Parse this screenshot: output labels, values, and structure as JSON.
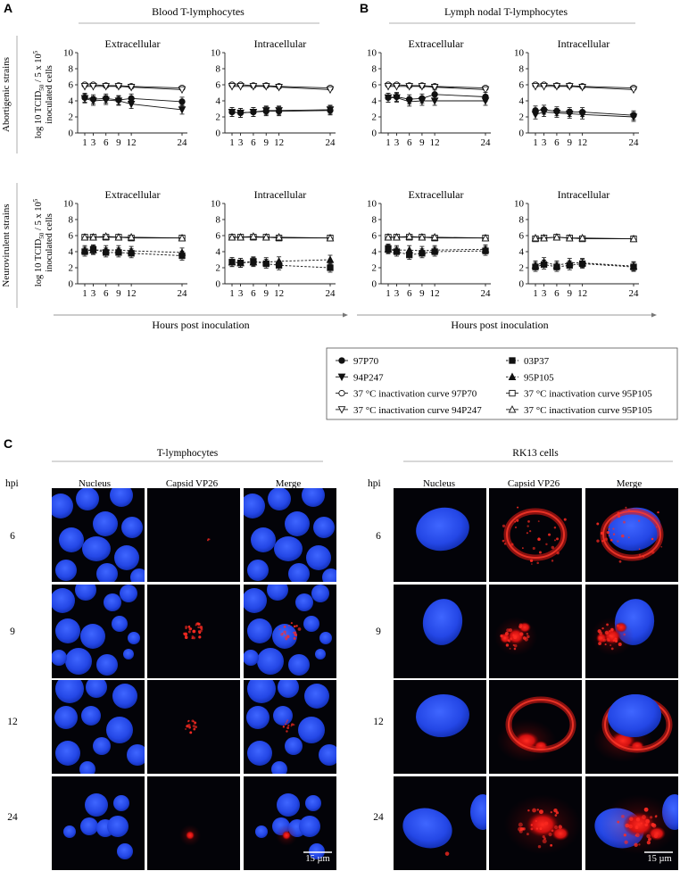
{
  "panels": {
    "A": "A",
    "B": "B",
    "C": "C",
    "A_title": "Blood T-lymphocytes",
    "B_title": "Lymph nodal T-lymphocytes"
  },
  "row_labels": {
    "top": "Abortigenic strains",
    "bottom": "Neurovirulent strains",
    "ylabel_main": "log 10 TCID",
    "ylabel_sub": "50",
    "ylabel_tail": " / 5 x 10",
    "ylabel_sup": "5",
    "ylabel_line2": "inoculated cells"
  },
  "xlabel": "Hours post inoculation",
  "legend": [
    {
      "label": "97P70",
      "marker": "circle-filled",
      "dash": false
    },
    {
      "label": "03P37",
      "marker": "square-filled",
      "dash": true
    },
    {
      "label": "94P247",
      "marker": "tri-down-filled",
      "dash": false
    },
    {
      "label": "95P105",
      "marker": "tri-up-filled",
      "dash": true
    },
    {
      "label": "37 °C inactivation curve 97P70",
      "marker": "circle-open",
      "dash": false
    },
    {
      "label": "37 °C inactivation curve 95P105",
      "marker": "square-open",
      "dash": false
    },
    {
      "label": "37 °C inactivation curve 94P247",
      "marker": "tri-down-open",
      "dash": false
    },
    {
      "label": "37 °C inactivation curve 95P105",
      "marker": "tri-up-open",
      "dash": false
    }
  ],
  "chart_data": [
    {
      "id": "A-ab-extra",
      "type": "line",
      "title": "Extracellular",
      "x": [
        1,
        3,
        6,
        9,
        12,
        24
      ],
      "ylim": [
        0,
        10
      ],
      "yticks": [
        0,
        2,
        4,
        6,
        8,
        10
      ],
      "xticks": [
        1,
        3,
        6,
        9,
        12,
        24
      ],
      "series": [
        {
          "name": "97P70",
          "values": [
            4.4,
            4.2,
            4.3,
            4.1,
            4.3,
            3.9
          ]
        },
        {
          "name": "94P247",
          "values": [
            4.3,
            4.0,
            4.1,
            4.0,
            3.6,
            2.9
          ]
        },
        {
          "name": "37 °C inactivation curve 97P70",
          "values": [
            6.0,
            6.0,
            5.9,
            5.9,
            5.8,
            5.6
          ]
        },
        {
          "name": "37 °C inactivation curve 94P247",
          "values": [
            5.8,
            5.8,
            5.8,
            5.8,
            5.7,
            5.4
          ]
        }
      ]
    },
    {
      "id": "A-ab-intra",
      "type": "line",
      "title": "Intracellular",
      "x": [
        1,
        3,
        6,
        9,
        12,
        24
      ],
      "ylim": [
        0,
        10
      ],
      "yticks": [
        0,
        2,
        4,
        6,
        8,
        10
      ],
      "xticks": [
        1,
        3,
        6,
        9,
        12,
        24
      ],
      "series": [
        {
          "name": "97P70",
          "values": [
            2.6,
            2.5,
            2.6,
            2.7,
            2.7,
            2.8
          ]
        },
        {
          "name": "94P247",
          "values": [
            2.6,
            2.5,
            2.6,
            2.8,
            2.8,
            2.9
          ]
        },
        {
          "name": "37 °C inactivation curve 97P70",
          "values": [
            6.0,
            6.0,
            5.9,
            5.9,
            5.8,
            5.6
          ]
        },
        {
          "name": "37 °C inactivation curve 94P247",
          "values": [
            5.8,
            5.8,
            5.8,
            5.8,
            5.7,
            5.4
          ]
        }
      ]
    },
    {
      "id": "B-ab-extra",
      "type": "line",
      "title": "Extracellular",
      "x": [
        1,
        3,
        6,
        9,
        12,
        24
      ],
      "ylim": [
        0,
        10
      ],
      "yticks": [
        0,
        2,
        4,
        6,
        8,
        10
      ],
      "xticks": [
        1,
        3,
        6,
        9,
        12,
        24
      ],
      "series": [
        {
          "name": "97P70",
          "values": [
            4.4,
            4.5,
            4.2,
            4.3,
            4.8,
            4.5
          ]
        },
        {
          "name": "94P247",
          "values": [
            4.4,
            4.4,
            3.9,
            4.0,
            4.0,
            4.0
          ]
        },
        {
          "name": "37 °C inactivation curve 97P70",
          "values": [
            6.0,
            6.0,
            5.9,
            5.9,
            5.8,
            5.6
          ]
        },
        {
          "name": "37 °C inactivation curve 94P247",
          "values": [
            5.8,
            5.8,
            5.8,
            5.8,
            5.7,
            5.4
          ]
        }
      ]
    },
    {
      "id": "B-ab-intra",
      "type": "line",
      "title": "Intracellular",
      "x": [
        1,
        3,
        6,
        9,
        12,
        24
      ],
      "ylim": [
        0,
        10
      ],
      "yticks": [
        0,
        2,
        4,
        6,
        8,
        10
      ],
      "xticks": [
        1,
        3,
        6,
        9,
        12,
        24
      ],
      "series": [
        {
          "name": "97P70",
          "values": [
            2.8,
            2.9,
            2.7,
            2.6,
            2.6,
            2.2
          ]
        },
        {
          "name": "94P247",
          "values": [
            2.3,
            2.6,
            2.5,
            2.4,
            2.3,
            2.0
          ]
        },
        {
          "name": "37 °C inactivation curve 97P70",
          "values": [
            6.0,
            6.0,
            5.9,
            5.9,
            5.8,
            5.6
          ]
        },
        {
          "name": "37 °C inactivation curve 94P247",
          "values": [
            5.8,
            5.8,
            5.8,
            5.8,
            5.7,
            5.4
          ]
        }
      ]
    },
    {
      "id": "A-nv-extra",
      "type": "line",
      "title": "Extracellular",
      "x": [
        1,
        3,
        6,
        9,
        12,
        24
      ],
      "ylim": [
        0,
        10
      ],
      "yticks": [
        0,
        2,
        4,
        6,
        8,
        10
      ],
      "xticks": [
        1,
        3,
        6,
        9,
        12,
        24
      ],
      "series": [
        {
          "name": "03P37",
          "values": [
            4.0,
            4.3,
            3.9,
            3.9,
            3.8,
            3.5
          ]
        },
        {
          "name": "95P105",
          "values": [
            4.2,
            4.2,
            4.2,
            4.2,
            4.1,
            3.9
          ]
        },
        {
          "name": "37 °C inactivation curve 95P105",
          "values": [
            5.8,
            5.8,
            5.8,
            5.8,
            5.7,
            5.7
          ]
        },
        {
          "name": "37 °C inactivation curve 95P105",
          "values": [
            5.8,
            5.8,
            5.9,
            5.8,
            5.8,
            5.7
          ]
        }
      ]
    },
    {
      "id": "A-nv-intra",
      "type": "line",
      "title": "Intracellular",
      "x": [
        1,
        3,
        6,
        9,
        12,
        24
      ],
      "ylim": [
        0,
        10
      ],
      "yticks": [
        0,
        2,
        4,
        6,
        8,
        10
      ],
      "xticks": [
        1,
        3,
        6,
        9,
        12,
        24
      ],
      "series": [
        {
          "name": "03P37",
          "values": [
            2.7,
            2.6,
            2.8,
            2.5,
            2.3,
            2.0
          ]
        },
        {
          "name": "95P105",
          "values": [
            2.7,
            2.6,
            2.7,
            2.7,
            2.8,
            3.0
          ]
        },
        {
          "name": "37 °C inactivation curve 95P105",
          "values": [
            5.8,
            5.8,
            5.8,
            5.8,
            5.7,
            5.7
          ]
        },
        {
          "name": "37 °C inactivation curve 95P105",
          "values": [
            5.8,
            5.8,
            5.9,
            5.8,
            5.8,
            5.7
          ]
        }
      ]
    },
    {
      "id": "B-nv-extra",
      "type": "line",
      "title": "Extracellular",
      "x": [
        1,
        3,
        6,
        9,
        12,
        24
      ],
      "ylim": [
        0,
        10
      ],
      "yticks": [
        0,
        2,
        4,
        6,
        8,
        10
      ],
      "xticks": [
        1,
        3,
        6,
        9,
        12,
        24
      ],
      "series": [
        {
          "name": "03P37",
          "values": [
            4.4,
            4.0,
            3.6,
            3.8,
            4.0,
            4.1
          ]
        },
        {
          "name": "95P105",
          "values": [
            4.3,
            4.2,
            4.2,
            4.1,
            4.2,
            4.3
          ]
        },
        {
          "name": "37 °C inactivation curve 95P105",
          "values": [
            5.8,
            5.8,
            5.8,
            5.8,
            5.7,
            5.7
          ]
        },
        {
          "name": "37 °C inactivation curve 95P105",
          "values": [
            5.8,
            5.8,
            5.9,
            5.8,
            5.8,
            5.7
          ]
        }
      ]
    },
    {
      "id": "B-nv-intra",
      "type": "line",
      "title": "Intracellular",
      "x": [
        1,
        3,
        6,
        9,
        12,
        24
      ],
      "ylim": [
        0,
        10
      ],
      "yticks": [
        0,
        2,
        4,
        6,
        8,
        10
      ],
      "xticks": [
        1,
        3,
        6,
        9,
        12,
        24
      ],
      "series": [
        {
          "name": "03P37",
          "values": [
            2.1,
            2.4,
            2.1,
            2.3,
            2.5,
            2.1
          ]
        },
        {
          "name": "95P105",
          "values": [
            2.3,
            2.7,
            2.3,
            2.6,
            2.6,
            2.2
          ]
        },
        {
          "name": "37 °C inactivation curve 95P105",
          "values": [
            5.6,
            5.7,
            5.8,
            5.7,
            5.6,
            5.6
          ]
        },
        {
          "name": "37 °C inactivation curve 95P105",
          "values": [
            5.7,
            5.7,
            5.8,
            5.7,
            5.7,
            5.6
          ]
        }
      ]
    }
  ],
  "micro": {
    "left_title": "T-lymphocytes",
    "right_title": "RK13 cells",
    "hpi_label": "hpi",
    "columns": [
      "Nucleus",
      "Capsid VP26",
      "Merge"
    ],
    "rows": [
      "6",
      "9",
      "12",
      "24"
    ],
    "scale_bar": "15 µm"
  }
}
